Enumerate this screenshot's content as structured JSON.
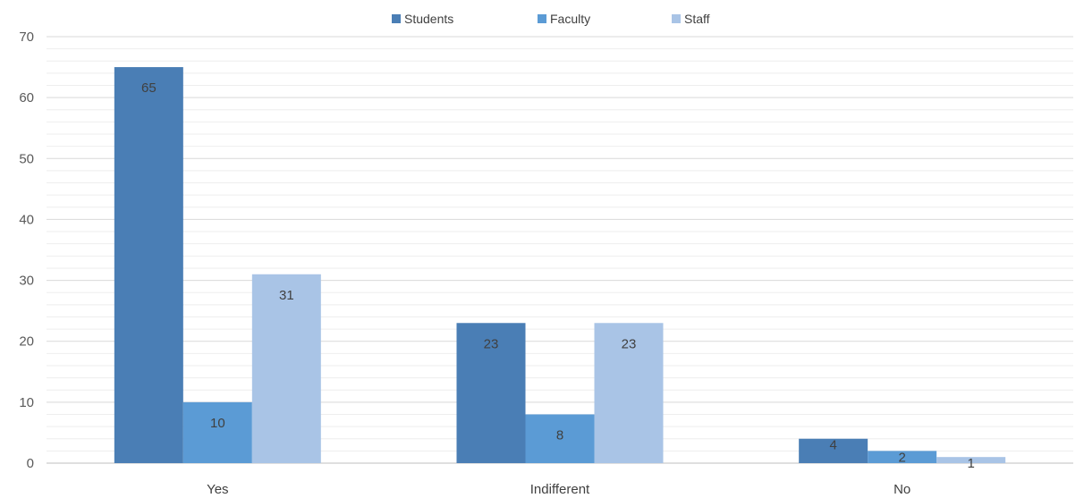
{
  "chart_data": {
    "type": "bar",
    "categories": [
      "Yes",
      "Indifferent",
      "No"
    ],
    "series": [
      {
        "name": "Students",
        "values": [
          65,
          23,
          4
        ],
        "color": "#4a7eb5"
      },
      {
        "name": "Faculty",
        "values": [
          10,
          8,
          2
        ],
        "color": "#5b9bd5"
      },
      {
        "name": "Staff",
        "values": [
          31,
          23,
          1
        ],
        "color": "#a9c4e6"
      }
    ],
    "title": "",
    "xlabel": "",
    "ylabel": "",
    "ylim": [
      0,
      70
    ],
    "yticks": [
      0,
      10,
      20,
      30,
      40,
      50,
      60,
      70
    ],
    "grid": true,
    "legend_position": "top-center",
    "data_labels": true
  }
}
